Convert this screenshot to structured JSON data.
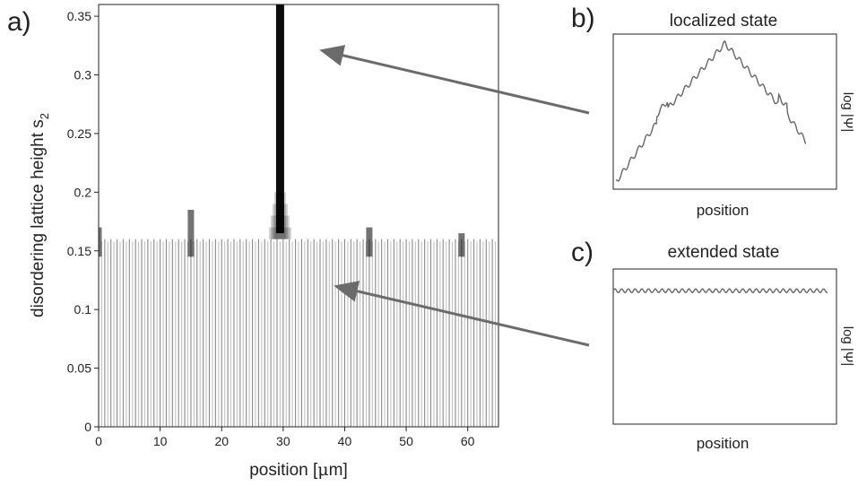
{
  "panels": {
    "a": {
      "letter": "a)",
      "xlabel": "position [",
      "xlabel_mu": "μ",
      "xlabel_unit": "m]",
      "ylabel_main": "disordering lattice height s",
      "ylabel_sub": "2"
    },
    "b": {
      "letter": "b)",
      "title": "localized state",
      "xlabel": "position",
      "ylabel": "log |Ψ|"
    },
    "c": {
      "letter": "c)",
      "title": "extended state",
      "xlabel": "position",
      "ylabel": "log |Ψ|"
    }
  },
  "chart_data": [
    {
      "id": "a",
      "type": "heatmap",
      "title": "",
      "xlabel": "position [μm]",
      "ylabel": "disordering lattice height s2",
      "xlim": [
        0,
        65
      ],
      "ylim": [
        0,
        0.36
      ],
      "xticks": [
        0,
        10,
        20,
        30,
        40,
        50,
        60
      ],
      "yticks": [
        0,
        0.05,
        0.1,
        0.15,
        0.2,
        0.25,
        0.3,
        0.35
      ],
      "xtick_labels": [
        "0",
        "10",
        "20",
        "30",
        "40",
        "50",
        "60"
      ],
      "ytick_labels": [
        "0",
        "0.05",
        "0.1",
        "0.15",
        "0.2",
        "0.25",
        "0.3",
        "0.35"
      ],
      "colormap": "white-to-black",
      "lattice_period": 1.0,
      "base_threshold": 0.16,
      "dark_sites": [
        {
          "x": 0,
          "top": 0.17
        },
        {
          "x": 15,
          "top": 0.185
        },
        {
          "x": 29.5,
          "top": 0.36
        },
        {
          "x": 44,
          "top": 0.17
        },
        {
          "x": 59,
          "top": 0.165
        }
      ]
    },
    {
      "id": "b",
      "type": "line",
      "title": "localized state",
      "xlabel": "position",
      "ylabel": "log |Ψ|",
      "shape": "peak",
      "x": [
        0,
        0.22,
        0.5,
        0.78,
        1.0
      ],
      "y": [
        0.02,
        0.48,
        0.94,
        0.48,
        0.02
      ]
    },
    {
      "id": "c",
      "type": "line",
      "title": "extended state",
      "xlabel": "position",
      "ylabel": "log |Ψ|",
      "shape": "flat",
      "x": [
        0,
        1.0
      ],
      "y": [
        0.86,
        0.86
      ]
    }
  ],
  "arrows": [
    {
      "from": "b",
      "to": "a",
      "target": "peak"
    },
    {
      "from": "c",
      "to": "a",
      "target": "band"
    }
  ],
  "colors": {
    "axis": "#222222",
    "arrow": "#6b6b6b",
    "trace": "#666666"
  }
}
